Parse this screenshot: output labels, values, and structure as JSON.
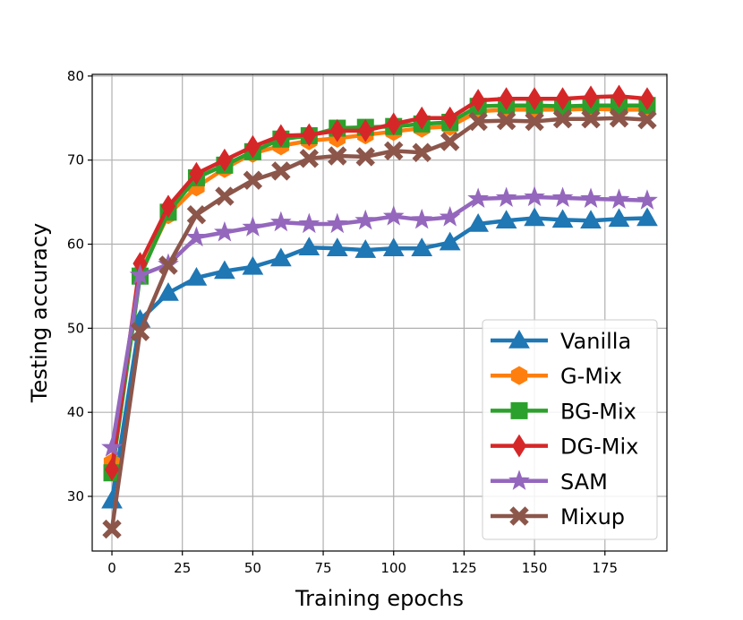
{
  "chart_data": {
    "type": "line",
    "xlabel": "Training epochs",
    "ylabel": "Testing accuracy",
    "xlim": [
      -7,
      197
    ],
    "ylim": [
      23.5,
      80.2
    ],
    "xticks": [
      0,
      25,
      50,
      75,
      100,
      125,
      150,
      175
    ],
    "yticks": [
      30,
      40,
      50,
      60,
      70,
      80
    ],
    "grid": true,
    "legend_position": "bottom-right",
    "x": [
      0,
      10,
      20,
      30,
      40,
      50,
      60,
      70,
      80,
      90,
      100,
      110,
      120,
      130,
      140,
      150,
      160,
      170,
      180,
      190
    ],
    "series": [
      {
        "name": "Vanilla",
        "color": "#1f77b4",
        "marker": "triangle",
        "values": [
          29.5,
          51.0,
          54.2,
          56.0,
          56.8,
          57.3,
          58.3,
          59.6,
          59.5,
          59.3,
          59.5,
          59.5,
          60.2,
          62.4,
          62.8,
          63.1,
          62.9,
          62.8,
          63.0,
          63.1
        ]
      },
      {
        "name": "G-Mix",
        "color": "#ff7f0e",
        "marker": "hexagon",
        "values": [
          34.0,
          56.5,
          63.5,
          66.8,
          69.0,
          70.8,
          71.7,
          72.3,
          72.6,
          73.0,
          73.4,
          73.8,
          74.0,
          75.8,
          76.0,
          76.0,
          76.0,
          76.1,
          76.0,
          76.0
        ]
      },
      {
        "name": "BG-Mix",
        "color": "#2ca02c",
        "marker": "square",
        "values": [
          32.8,
          56.2,
          63.8,
          67.9,
          69.4,
          71.0,
          72.5,
          72.9,
          73.8,
          73.9,
          74.0,
          74.3,
          74.5,
          76.4,
          76.5,
          76.5,
          76.4,
          76.5,
          76.5,
          76.5
        ]
      },
      {
        "name": "DG-Mix",
        "color": "#d62728",
        "marker": "diamond",
        "values": [
          33.2,
          57.7,
          64.5,
          68.4,
          70.0,
          71.6,
          72.9,
          73.0,
          73.5,
          73.5,
          74.3,
          75.0,
          75.0,
          77.1,
          77.3,
          77.3,
          77.3,
          77.5,
          77.6,
          77.3
        ]
      },
      {
        "name": "SAM",
        "color": "#9467bd",
        "marker": "star",
        "values": [
          35.8,
          56.3,
          57.6,
          60.8,
          61.4,
          62.0,
          62.6,
          62.4,
          62.4,
          62.8,
          63.3,
          62.9,
          63.2,
          65.4,
          65.5,
          65.6,
          65.5,
          65.4,
          65.3,
          65.2
        ]
      },
      {
        "name": "Mixup",
        "color": "#8c564b",
        "marker": "x",
        "values": [
          26.1,
          49.6,
          57.5,
          63.5,
          65.7,
          67.6,
          68.7,
          70.2,
          70.5,
          70.4,
          71.1,
          70.9,
          72.2,
          74.6,
          74.7,
          74.6,
          74.9,
          74.9,
          75.0,
          74.8
        ]
      }
    ]
  }
}
